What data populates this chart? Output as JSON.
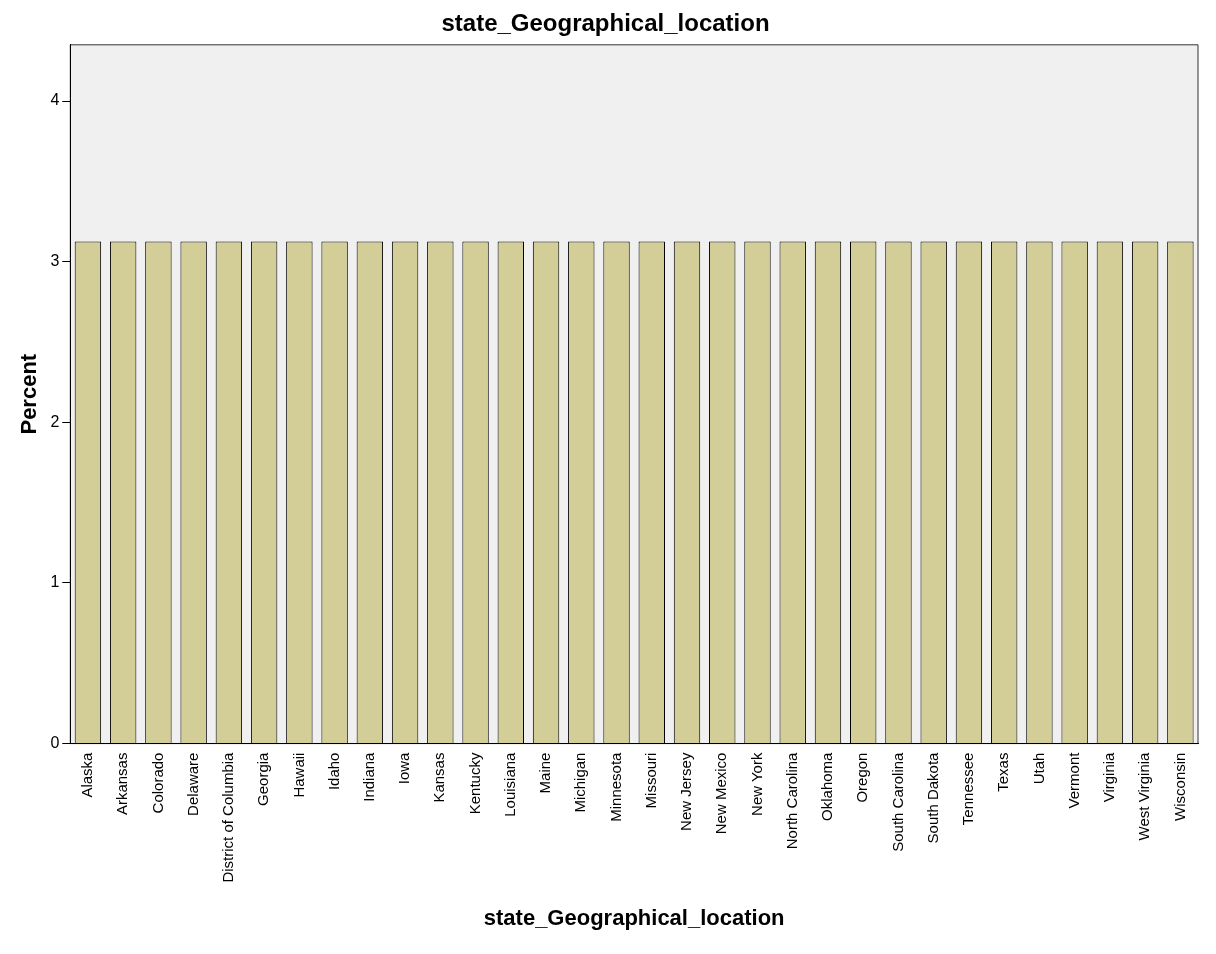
{
  "chart_data": {
    "type": "bar",
    "title": "state_Geographical_location",
    "xlabel": "state_Geographical_location",
    "ylabel": "Percent",
    "categories": [
      "Alaska",
      "Arkansas",
      "Colorado",
      "Delaware",
      "District of Columbia",
      "Georgia",
      "Hawaii",
      "Idaho",
      "Indiana",
      "Iowa",
      "Kansas",
      "Kentucky",
      "Louisiana",
      "Maine",
      "Michigan",
      "Minnesota",
      "Missouri",
      "New Jersey",
      "New Mexico",
      "New York",
      "North Carolina",
      "Oklahoma",
      "Oregon",
      "South Carolina",
      "South Dakota",
      "Tennessee",
      "Texas",
      "Utah",
      "Vermont",
      "Virginia",
      "West Virginia",
      "Wisconsin"
    ],
    "values": [
      3.125,
      3.125,
      3.125,
      3.125,
      3.125,
      3.125,
      3.125,
      3.125,
      3.125,
      3.125,
      3.125,
      3.125,
      3.125,
      3.125,
      3.125,
      3.125,
      3.125,
      3.125,
      3.125,
      3.125,
      3.125,
      3.125,
      3.125,
      3.125,
      3.125,
      3.125,
      3.125,
      3.125,
      3.125,
      3.125,
      3.125,
      3.125
    ],
    "color": "#d3ce97",
    "ylim": [
      0,
      4.35
    ],
    "yticks": [
      0,
      1,
      2,
      3,
      4
    ],
    "grid": false,
    "legend": false
  }
}
